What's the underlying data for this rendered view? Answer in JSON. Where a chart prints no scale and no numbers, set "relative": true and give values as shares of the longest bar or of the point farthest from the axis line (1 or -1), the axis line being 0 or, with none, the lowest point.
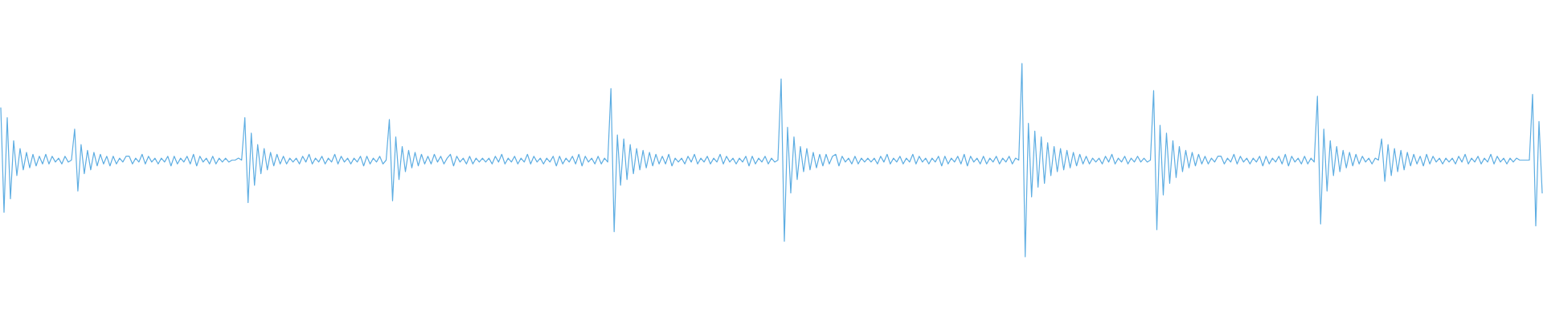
{
  "chart_data": {
    "type": "line",
    "relative": true,
    "color": "#5dade2",
    "categories": [
      null,
      null,
      null,
      null,
      null,
      null,
      null,
      null,
      null,
      null,
      null,
      null,
      null,
      null,
      null,
      null,
      null,
      null,
      null,
      null,
      null,
      null,
      null,
      null,
      null,
      null,
      null,
      null,
      null,
      null,
      null,
      null,
      null,
      null,
      null,
      null,
      null,
      null,
      null,
      null,
      null,
      null,
      null,
      null,
      null,
      null,
      null,
      null,
      null,
      null,
      null,
      null,
      null,
      null,
      null,
      null,
      null,
      null,
      null,
      null,
      null,
      null,
      null,
      null,
      null,
      null,
      null,
      null,
      null,
      null,
      null,
      null,
      null,
      null,
      null,
      null,
      null,
      null,
      null,
      null,
      null,
      null,
      null,
      null,
      null,
      null,
      null,
      null,
      null,
      null,
      null,
      null,
      null,
      null,
      null,
      null,
      null,
      null,
      null,
      null,
      null,
      null,
      null,
      null,
      null,
      null,
      null,
      null,
      null,
      null,
      null,
      null,
      null,
      null,
      null,
      null,
      null,
      null,
      null,
      null,
      null,
      null,
      null,
      null,
      null,
      null,
      null,
      null,
      null,
      null,
      null,
      null,
      null,
      null,
      null,
      null,
      null,
      null,
      null,
      null,
      null,
      null,
      null,
      null,
      null,
      null,
      null,
      null,
      null,
      null,
      null,
      null,
      null,
      null,
      null,
      null,
      null,
      null,
      null,
      null,
      null,
      null,
      null,
      null,
      null,
      null,
      null,
      null,
      null,
      null,
      null,
      null,
      null,
      null,
      null,
      null,
      null,
      null,
      null,
      null,
      null,
      null,
      null,
      null,
      null,
      null,
      null,
      null,
      null,
      null,
      null,
      null,
      null,
      null,
      null,
      null,
      null,
      null,
      null,
      null,
      null,
      null,
      null,
      null,
      null,
      null,
      null,
      null,
      null,
      null,
      null,
      null,
      null,
      null,
      null,
      null,
      null,
      null,
      null,
      null,
      null,
      null,
      null,
      null,
      null,
      null,
      null,
      null,
      null,
      null,
      null,
      null,
      null,
      null,
      null,
      null,
      null,
      null,
      null,
      null,
      null,
      null,
      null,
      null,
      null,
      null,
      null,
      null,
      null,
      null,
      null,
      null,
      null,
      null,
      null,
      null,
      null,
      null,
      null,
      null,
      null,
      null,
      null,
      null,
      null,
      null,
      null,
      null,
      null,
      null,
      null,
      null,
      null,
      null,
      null,
      null,
      null,
      null,
      null,
      null,
      null,
      null,
      null,
      null,
      null,
      null,
      null,
      null,
      null,
      null,
      null,
      null,
      null,
      null,
      null,
      null,
      null,
      null,
      null,
      null,
      null,
      null,
      null,
      null,
      null,
      null,
      null,
      null,
      null,
      null,
      null,
      null,
      null,
      null,
      null,
      null,
      null,
      null,
      null,
      null,
      null,
      null,
      null,
      null,
      null,
      null,
      null,
      null,
      null,
      null,
      null,
      null,
      null,
      null,
      null,
      null,
      null,
      null,
      null,
      null,
      null,
      null,
      null,
      null,
      null,
      null,
      null,
      null,
      null,
      null,
      null,
      null,
      null,
      null,
      null,
      null,
      null,
      null,
      null,
      null,
      null,
      null,
      null,
      null,
      null,
      null,
      null,
      null,
      null,
      null,
      null,
      null,
      null,
      null,
      null,
      null,
      null,
      null,
      null,
      null,
      null,
      null,
      null,
      null,
      null,
      null,
      null,
      null,
      null,
      null,
      null,
      null,
      null,
      null,
      null,
      null,
      null,
      null,
      null,
      null,
      null,
      null,
      null,
      null,
      null,
      null,
      null,
      null,
      null,
      null,
      null,
      null,
      null,
      null,
      null,
      null,
      null,
      null,
      null,
      null,
      null,
      null,
      null,
      null,
      null,
      null,
      null,
      null,
      null,
      null,
      null,
      null,
      null,
      null,
      null,
      null,
      null,
      null,
      null,
      null,
      null,
      null,
      null,
      null,
      null,
      null,
      null,
      null,
      null,
      null,
      null,
      null,
      null,
      null,
      null,
      null,
      null,
      null,
      null,
      null,
      null,
      null,
      null,
      null,
      null,
      null,
      null,
      null,
      null,
      null,
      null,
      null,
      null,
      null,
      null,
      null,
      null,
      null,
      null,
      null,
      null
    ],
    "values": [
      0.77,
      0.23,
      0.72,
      0.3,
      0.6,
      0.42,
      0.56,
      0.45,
      0.54,
      0.46,
      0.53,
      0.47,
      0.52,
      0.48,
      0.53,
      0.48,
      0.52,
      0.49,
      0.51,
      0.48,
      0.52,
      0.49,
      0.5,
      0.66,
      0.34,
      0.58,
      0.43,
      0.55,
      0.45,
      0.54,
      0.47,
      0.53,
      0.48,
      0.52,
      0.47,
      0.52,
      0.48,
      0.51,
      0.49,
      0.52,
      0.52,
      0.48,
      0.51,
      0.49,
      0.53,
      0.48,
      0.52,
      0.49,
      0.51,
      0.48,
      0.51,
      0.49,
      0.52,
      0.47,
      0.52,
      0.48,
      0.51,
      0.49,
      0.52,
      0.48,
      0.53,
      0.47,
      0.52,
      0.49,
      0.51,
      0.48,
      0.52,
      0.48,
      0.51,
      0.49,
      0.51,
      0.49,
      0.5,
      0.5,
      0.51,
      0.5,
      0.72,
      0.28,
      0.64,
      0.37,
      0.58,
      0.43,
      0.56,
      0.45,
      0.54,
      0.47,
      0.53,
      0.48,
      0.52,
      0.48,
      0.51,
      0.49,
      0.51,
      0.48,
      0.52,
      0.49,
      0.53,
      0.48,
      0.51,
      0.49,
      0.52,
      0.48,
      0.51,
      0.49,
      0.53,
      0.48,
      0.52,
      0.49,
      0.51,
      0.48,
      0.51,
      0.49,
      0.52,
      0.47,
      0.52,
      0.48,
      0.51,
      0.49,
      0.52,
      0.48,
      0.5,
      0.71,
      0.29,
      0.62,
      0.4,
      0.57,
      0.44,
      0.55,
      0.46,
      0.54,
      0.47,
      0.53,
      0.48,
      0.52,
      0.48,
      0.53,
      0.49,
      0.52,
      0.48,
      0.51,
      0.53,
      0.47,
      0.52,
      0.49,
      0.51,
      0.48,
      0.52,
      0.48,
      0.51,
      0.49,
      0.51,
      0.49,
      0.51,
      0.48,
      0.52,
      0.49,
      0.53,
      0.48,
      0.51,
      0.49,
      0.52,
      0.48,
      0.51,
      0.49,
      0.53,
      0.48,
      0.52,
      0.49,
      0.51,
      0.48,
      0.51,
      0.49,
      0.52,
      0.47,
      0.52,
      0.48,
      0.51,
      0.49,
      0.52,
      0.48,
      0.53,
      0.47,
      0.52,
      0.49,
      0.51,
      0.48,
      0.52,
      0.48,
      0.51,
      0.49,
      0.87,
      0.13,
      0.63,
      0.37,
      0.61,
      0.4,
      0.58,
      0.43,
      0.56,
      0.45,
      0.55,
      0.46,
      0.54,
      0.47,
      0.53,
      0.48,
      0.52,
      0.48,
      0.53,
      0.47,
      0.51,
      0.49,
      0.51,
      0.48,
      0.52,
      0.49,
      0.53,
      0.48,
      0.51,
      0.49,
      0.52,
      0.48,
      0.51,
      0.49,
      0.53,
      0.48,
      0.52,
      0.49,
      0.51,
      0.48,
      0.51,
      0.49,
      0.52,
      0.47,
      0.52,
      0.48,
      0.51,
      0.49,
      0.52,
      0.48,
      0.51,
      0.49,
      0.5,
      0.92,
      0.08,
      0.67,
      0.33,
      0.62,
      0.4,
      0.57,
      0.44,
      0.56,
      0.45,
      0.54,
      0.46,
      0.53,
      0.47,
      0.53,
      0.48,
      0.52,
      0.53,
      0.47,
      0.52,
      0.49,
      0.51,
      0.48,
      0.52,
      0.48,
      0.51,
      0.49,
      0.51,
      0.49,
      0.51,
      0.48,
      0.52,
      0.49,
      0.53,
      0.48,
      0.51,
      0.49,
      0.52,
      0.48,
      0.51,
      0.49,
      0.53,
      0.48,
      0.52,
      0.49,
      0.51,
      0.48,
      0.51,
      0.49,
      0.52,
      0.47,
      0.52,
      0.48,
      0.51,
      0.49,
      0.52,
      0.48,
      0.53,
      0.47,
      0.52,
      0.49,
      0.51,
      0.48,
      0.52,
      0.48,
      0.51,
      0.49,
      0.52,
      0.48,
      0.51,
      0.49,
      0.52,
      0.48,
      0.51,
      0.5,
      1.0,
      0.0,
      0.69,
      0.31,
      0.65,
      0.36,
      0.62,
      0.38,
      0.59,
      0.42,
      0.57,
      0.44,
      0.56,
      0.45,
      0.55,
      0.46,
      0.54,
      0.47,
      0.53,
      0.48,
      0.52,
      0.48,
      0.51,
      0.49,
      0.51,
      0.48,
      0.52,
      0.49,
      0.53,
      0.48,
      0.51,
      0.49,
      0.52,
      0.48,
      0.51,
      0.49,
      0.52,
      0.49,
      0.51,
      0.49,
      0.5,
      0.86,
      0.14,
      0.68,
      0.32,
      0.64,
      0.38,
      0.6,
      0.41,
      0.57,
      0.44,
      0.55,
      0.46,
      0.54,
      0.47,
      0.53,
      0.48,
      0.52,
      0.48,
      0.51,
      0.49,
      0.52,
      0.52,
      0.48,
      0.51,
      0.49,
      0.53,
      0.48,
      0.52,
      0.49,
      0.51,
      0.48,
      0.51,
      0.49,
      0.52,
      0.47,
      0.52,
      0.48,
      0.51,
      0.49,
      0.52,
      0.48,
      0.53,
      0.47,
      0.52,
      0.49,
      0.51,
      0.48,
      0.52,
      0.48,
      0.51,
      0.49,
      0.83,
      0.17,
      0.66,
      0.34,
      0.6,
      0.42,
      0.57,
      0.44,
      0.55,
      0.46,
      0.54,
      0.47,
      0.53,
      0.48,
      0.52,
      0.49,
      0.51,
      0.48,
      0.51,
      0.5,
      0.61,
      0.39,
      0.58,
      0.42,
      0.56,
      0.44,
      0.55,
      0.45,
      0.54,
      0.47,
      0.53,
      0.48,
      0.52,
      0.47,
      0.53,
      0.48,
      0.52,
      0.49,
      0.51,
      0.48,
      0.51,
      0.49,
      0.51,
      0.48,
      0.52,
      0.49,
      0.53,
      0.48,
      0.51,
      0.49,
      0.52,
      0.48,
      0.51,
      0.49,
      0.53,
      0.48,
      0.52,
      0.49,
      0.51,
      0.48,
      0.51,
      0.49,
      0.51,
      0.5,
      0.5,
      0.5,
      0.5,
      0.84,
      0.16,
      0.7,
      0.33
    ]
  }
}
